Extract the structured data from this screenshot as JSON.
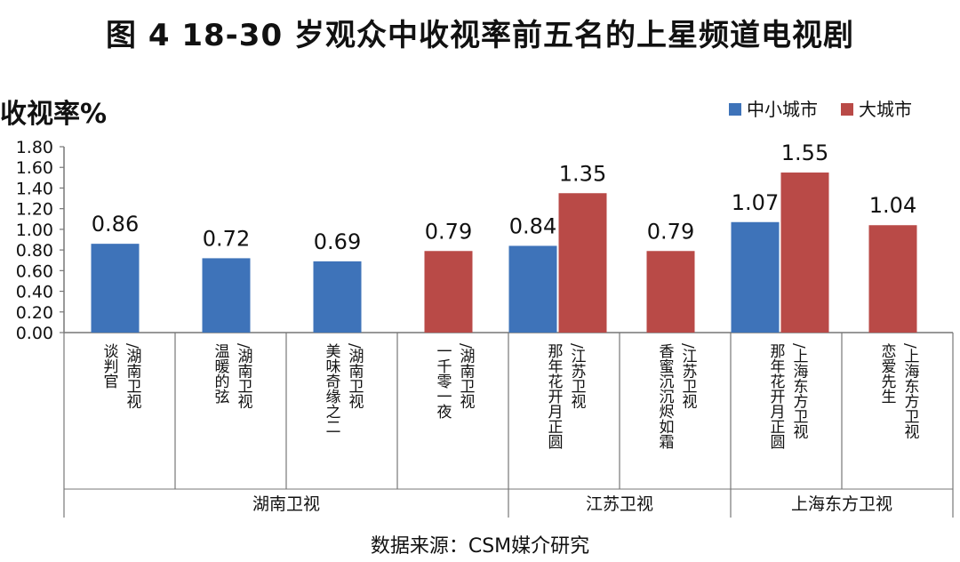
{
  "title": "图 4 18-30 岁观众中收视率前五名的上星频道电视剧",
  "source": "数据来源：CSM媒介研究",
  "chart_data": {
    "type": "bar",
    "ylabel": "收视率%",
    "ylim": [
      0,
      1.8
    ],
    "yticks": [
      "0.00",
      "0.20",
      "0.40",
      "0.60",
      "0.80",
      "1.00",
      "1.20",
      "1.40",
      "1.60",
      "1.80"
    ],
    "grid": false,
    "legend_position": "top-right",
    "categories": [
      "谈判官/湖南卫视",
      "温暖的弦/湖南卫视",
      "美味奇缘之二/湖南卫视",
      "一千零一夜/湖南卫视",
      "那年花开月正圆/江苏卫视",
      "香蜜沉沉烬如霜/江苏卫视",
      "那年花开月正圆/上海东方卫视",
      "恋爱先生/上海东方卫视"
    ],
    "category_lines": [
      [
        "谈判官",
        "/湖南卫视"
      ],
      [
        "温暖的弦",
        "/湖南卫视"
      ],
      [
        "美味奇缘之二",
        "/湖南卫视"
      ],
      [
        "一千零一夜",
        "/湖南卫视"
      ],
      [
        "那年花开月正圆",
        "/江苏卫视"
      ],
      [
        "香蜜沉沉烬如霜",
        "/江苏卫视"
      ],
      [
        "那年花开月正圆",
        "/上海东方卫视"
      ],
      [
        "恋爱先生",
        "/上海东方卫视"
      ]
    ],
    "groups": [
      {
        "label": "湖南卫视",
        "count": 4
      },
      {
        "label": "江苏卫视",
        "count": 2
      },
      {
        "label": "上海东方卫视",
        "count": 2
      }
    ],
    "series": [
      {
        "name": "中小城市",
        "color": "#3e73b9",
        "values": [
          0.86,
          0.72,
          0.69,
          null,
          0.84,
          null,
          1.07,
          null
        ]
      },
      {
        "name": "大城市",
        "color": "#b94a47",
        "values": [
          null,
          null,
          null,
          0.79,
          1.35,
          0.79,
          1.55,
          1.04
        ]
      }
    ]
  }
}
